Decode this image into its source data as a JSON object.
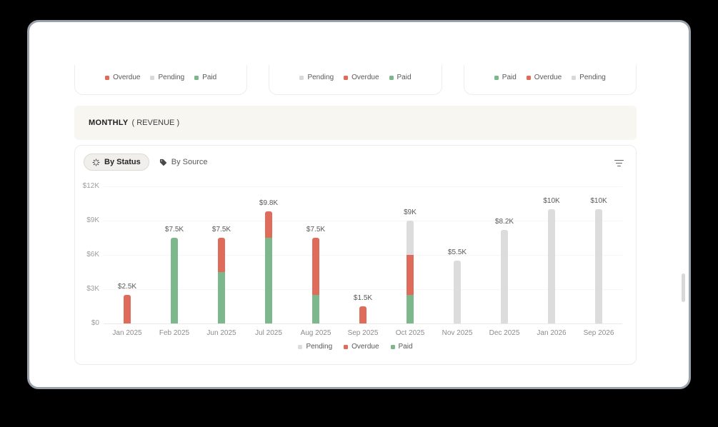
{
  "summary_cards": [
    {
      "legend": [
        {
          "label": "Overdue",
          "color": "#df6b5b"
        },
        {
          "label": "Pending",
          "color": "#d9d9d9"
        },
        {
          "label": "Paid",
          "color": "#7cb88c"
        }
      ]
    },
    {
      "legend": [
        {
          "label": "Pending",
          "color": "#d9d9d9"
        },
        {
          "label": "Overdue",
          "color": "#df6b5b"
        },
        {
          "label": "Paid",
          "color": "#7cb88c"
        }
      ]
    },
    {
      "legend": [
        {
          "label": "Paid",
          "color": "#7cb88c"
        },
        {
          "label": "Overdue",
          "color": "#df6b5b"
        },
        {
          "label": "Pending",
          "color": "#d9d9d9"
        }
      ]
    }
  ],
  "section_header": {
    "title": "MONTHLY",
    "subtitle": "( REVENUE )"
  },
  "chart_card": {
    "tabs": [
      {
        "label": "By Status",
        "icon": "status-spinner-icon",
        "active": true
      },
      {
        "label": "By Source",
        "icon": "tag-icon",
        "active": false
      }
    ],
    "filter_icon": "filter-lines-icon"
  },
  "chart_data": {
    "type": "bar",
    "stacked": true,
    "categories": [
      "Jan 2025",
      "Feb 2025",
      "Jun 2025",
      "Jul 2025",
      "Aug 2025",
      "Sep 2025",
      "Oct 2025",
      "Nov 2025",
      "Dec 2025",
      "Jan 2026",
      "Sep 2026"
    ],
    "series": [
      {
        "name": "Paid",
        "color": "#7cb88c",
        "values": [
          0,
          7.5,
          4.5,
          7.5,
          2.5,
          0,
          2.5,
          0,
          0,
          0,
          0
        ]
      },
      {
        "name": "Overdue",
        "color": "#df6b5b",
        "values": [
          2.5,
          0,
          3,
          2.3,
          5,
          1.5,
          3.5,
          0,
          0,
          0,
          0
        ]
      },
      {
        "name": "Pending",
        "color": "#dcdcdc",
        "values": [
          0,
          0,
          0,
          0,
          0,
          0,
          3,
          5.5,
          8.2,
          10,
          10
        ]
      }
    ],
    "stack_order": "bottom-up",
    "total_labels": [
      "$2.5K",
      "$7.5K",
      "$7.5K",
      "$9.8K",
      "$7.5K",
      "$1.5K",
      "$9K",
      "$5.5K",
      "$8.2K",
      "$10K",
      "$10K"
    ],
    "y_ticks": [
      {
        "label": "$12K",
        "value": 12
      },
      {
        "label": "$9K",
        "value": 9
      },
      {
        "label": "$6K",
        "value": 6
      },
      {
        "label": "$3K",
        "value": 3
      },
      {
        "label": "$0",
        "value": 0
      }
    ],
    "ylim": [
      0,
      12
    ],
    "grid": true,
    "legend": [
      {
        "label": "Pending",
        "color": "#dcdcdc"
      },
      {
        "label": "Overdue",
        "color": "#df6b5b"
      },
      {
        "label": "Paid",
        "color": "#7cb88c"
      }
    ],
    "legend_position": "bottom"
  }
}
